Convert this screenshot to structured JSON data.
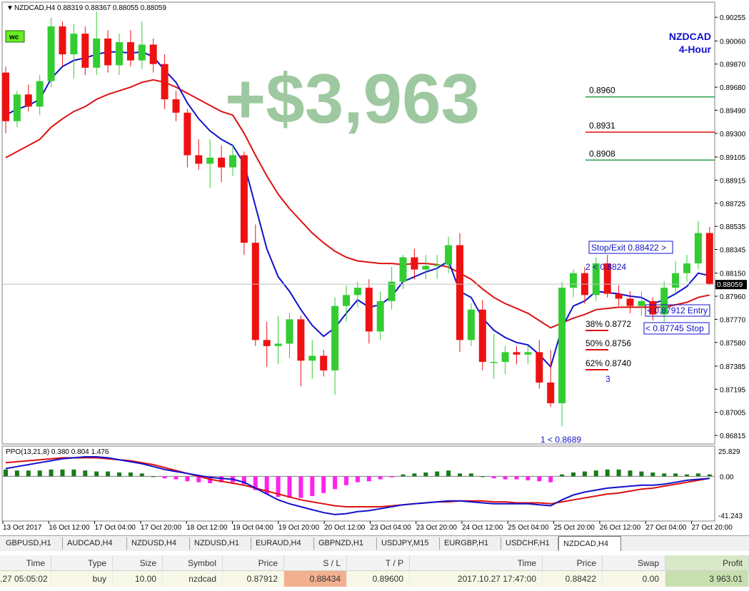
{
  "chart": {
    "header": "NZDCAD,H4  0.88319 0.88367 0.88055 0.88059",
    "logo_badge": "wc",
    "symbol_label": "NZDCAD",
    "timeframe_label": "4-Hour",
    "profit_overlay": "+$3,963",
    "current_price_tag": "0.88059",
    "price_axis": [
      "0.90255",
      "0.90060",
      "0.89870",
      "0.89680",
      "0.89490",
      "0.89300",
      "0.89105",
      "0.88915",
      "0.88725",
      "0.88535",
      "0.88345",
      "0.88150",
      "0.87960",
      "0.87770",
      "0.87580",
      "0.87385",
      "0.87195",
      "0.87005",
      "0.86815"
    ],
    "time_axis": [
      "13 Oct 2017",
      "16 Oct 12:00",
      "17 Oct 04:00",
      "17 Oct 20:00",
      "18 Oct 12:00",
      "19 Oct 04:00",
      "19 Oct 20:00",
      "20 Oct 12:00",
      "23 Oct 04:00",
      "23 Oct 20:00",
      "24 Oct 12:00",
      "25 Oct 04:00",
      "25 Oct 20:00",
      "26 Oct 12:00",
      "27 Oct 04:00",
      "27 Oct 20:00"
    ],
    "levels": [
      {
        "label": "0.8960",
        "price": 0.896,
        "color": "#2e9e4a"
      },
      {
        "label": "0.8931",
        "price": 0.8931,
        "color": "#dd1111"
      },
      {
        "label": "0.8908",
        "price": 0.8908,
        "color": "#2e9e4a"
      }
    ],
    "annotations": {
      "stop_exit": "Stop/Exit 0.88422 >",
      "wave2": "2 < 0.8824",
      "entry": "< 0.87912 Entry",
      "stop": "< 0.87745 Stop",
      "fib38": "38% 0.8772",
      "fib50": "50% 0.8756",
      "fib62": "62% 0.8740",
      "wave3": "3",
      "wave1": "1 < 0.8689"
    },
    "indicator": {
      "label": "PPO(13,21,8) 0.380 0.804 1.476",
      "axis_top": "25.829",
      "axis_zero": "0.00",
      "axis_bottom": "-41.243"
    }
  },
  "tabs": [
    {
      "label": "GBPUSD,H1",
      "active": false
    },
    {
      "label": "AUDCAD,H4",
      "active": false
    },
    {
      "label": "NZDUSD,H4",
      "active": false
    },
    {
      "label": "NZDUSD,H1",
      "active": false
    },
    {
      "label": "EURAUD,H4",
      "active": false
    },
    {
      "label": "GBPNZD,H1",
      "active": false
    },
    {
      "label": "USDJPY,M15",
      "active": false
    },
    {
      "label": "EURGBP,H1",
      "active": false
    },
    {
      "label": "USDCHF,H1",
      "active": false
    },
    {
      "label": "NZDCAD,H4",
      "active": true
    }
  ],
  "terminal": {
    "headers": {
      "time": "Time",
      "type": "Type",
      "size": "Size",
      "symbol": "Symbol",
      "price": "Price",
      "sl": "S / L",
      "tp": "T / P",
      "close_time": "Time",
      "close_price": "Price",
      "swap": "Swap",
      "profit": "Profit"
    },
    "row": {
      "time": ".27 05:05:02",
      "type": "buy",
      "size": "10.00",
      "symbol": "nzdcad",
      "price": "0.87912",
      "sl": "0.88434",
      "tp": "0.89600",
      "close_time": "2017.10.27 17:47:00",
      "close_price": "0.88422",
      "swap": "0.00",
      "profit": "3 963.01"
    }
  },
  "chart_data": {
    "type": "candlestick",
    "title": "NZDCAD,H4",
    "ylim": [
      0.8678,
      0.9035
    ],
    "colors": {
      "bull": "#33cc33",
      "bear": "#ee1111",
      "fast_ma": "#1111cc",
      "slow_ma": "#dd1111",
      "ppo_pos": "#1a7a1a",
      "ppo_neg": "#ff22ee"
    },
    "candles": [
      {
        "o": 0.898,
        "h": 0.8985,
        "l": 0.893,
        "c": 0.894
      },
      {
        "o": 0.894,
        "h": 0.8965,
        "l": 0.8935,
        "c": 0.8962
      },
      {
        "o": 0.8962,
        "h": 0.897,
        "l": 0.8948,
        "c": 0.8952
      },
      {
        "o": 0.8952,
        "h": 0.8978,
        "l": 0.8945,
        "c": 0.8973
      },
      {
        "o": 0.8973,
        "h": 0.9025,
        "l": 0.8968,
        "c": 0.9018
      },
      {
        "o": 0.9018,
        "h": 0.9022,
        "l": 0.8985,
        "c": 0.8995
      },
      {
        "o": 0.8995,
        "h": 0.902,
        "l": 0.8975,
        "c": 0.9012
      },
      {
        "o": 0.9012,
        "h": 0.9018,
        "l": 0.8978,
        "c": 0.8984
      },
      {
        "o": 0.8984,
        "h": 0.903,
        "l": 0.8978,
        "c": 0.9008
      },
      {
        "o": 0.9008,
        "h": 0.9015,
        "l": 0.898,
        "c": 0.8986
      },
      {
        "o": 0.8986,
        "h": 0.9012,
        "l": 0.8978,
        "c": 0.9005
      },
      {
        "o": 0.9005,
        "h": 0.9015,
        "l": 0.8985,
        "c": 0.899
      },
      {
        "o": 0.899,
        "h": 0.9022,
        "l": 0.8983,
        "c": 0.9003
      },
      {
        "o": 0.9003,
        "h": 0.9008,
        "l": 0.898,
        "c": 0.8987
      },
      {
        "o": 0.8987,
        "h": 0.8995,
        "l": 0.895,
        "c": 0.8958
      },
      {
        "o": 0.8958,
        "h": 0.8965,
        "l": 0.894,
        "c": 0.8947
      },
      {
        "o": 0.8947,
        "h": 0.895,
        "l": 0.8902,
        "c": 0.8912
      },
      {
        "o": 0.8912,
        "h": 0.8925,
        "l": 0.89,
        "c": 0.8905
      },
      {
        "o": 0.8905,
        "h": 0.8925,
        "l": 0.8885,
        "c": 0.891
      },
      {
        "o": 0.891,
        "h": 0.892,
        "l": 0.889,
        "c": 0.8902
      },
      {
        "o": 0.8902,
        "h": 0.892,
        "l": 0.8895,
        "c": 0.8912
      },
      {
        "o": 0.8912,
        "h": 0.8915,
        "l": 0.883,
        "c": 0.884
      },
      {
        "o": 0.884,
        "h": 0.8855,
        "l": 0.8755,
        "c": 0.876
      },
      {
        "o": 0.876,
        "h": 0.8775,
        "l": 0.8738,
        "c": 0.8755
      },
      {
        "o": 0.8755,
        "h": 0.878,
        "l": 0.874,
        "c": 0.8757
      },
      {
        "o": 0.8757,
        "h": 0.8782,
        "l": 0.8745,
        "c": 0.8777
      },
      {
        "o": 0.8777,
        "h": 0.878,
        "l": 0.8722,
        "c": 0.8743
      },
      {
        "o": 0.8743,
        "h": 0.876,
        "l": 0.8728,
        "c": 0.8747
      },
      {
        "o": 0.8747,
        "h": 0.8752,
        "l": 0.873,
        "c": 0.8735
      },
      {
        "o": 0.8735,
        "h": 0.8795,
        "l": 0.8715,
        "c": 0.8788
      },
      {
        "o": 0.8788,
        "h": 0.8805,
        "l": 0.8775,
        "c": 0.8797
      },
      {
        "o": 0.8797,
        "h": 0.8808,
        "l": 0.8787,
        "c": 0.8803
      },
      {
        "o": 0.8803,
        "h": 0.881,
        "l": 0.8757,
        "c": 0.8767
      },
      {
        "o": 0.8767,
        "h": 0.88,
        "l": 0.876,
        "c": 0.8792
      },
      {
        "o": 0.8792,
        "h": 0.882,
        "l": 0.8785,
        "c": 0.8808
      },
      {
        "o": 0.8808,
        "h": 0.883,
        "l": 0.8802,
        "c": 0.8828
      },
      {
        "o": 0.8828,
        "h": 0.8835,
        "l": 0.881,
        "c": 0.8818
      },
      {
        "o": 0.8818,
        "h": 0.883,
        "l": 0.881,
        "c": 0.8821
      },
      {
        "o": 0.8821,
        "h": 0.883,
        "l": 0.881,
        "c": 0.8822
      },
      {
        "o": 0.8822,
        "h": 0.8845,
        "l": 0.8815,
        "c": 0.8838
      },
      {
        "o": 0.8838,
        "h": 0.8848,
        "l": 0.875,
        "c": 0.876
      },
      {
        "o": 0.876,
        "h": 0.879,
        "l": 0.8755,
        "c": 0.8785
      },
      {
        "o": 0.8785,
        "h": 0.8793,
        "l": 0.8735,
        "c": 0.8742
      },
      {
        "o": 0.8742,
        "h": 0.8765,
        "l": 0.8728,
        "c": 0.8742
      },
      {
        "o": 0.8742,
        "h": 0.8755,
        "l": 0.8732,
        "c": 0.875
      },
      {
        "o": 0.875,
        "h": 0.8755,
        "l": 0.874,
        "c": 0.8748
      },
      {
        "o": 0.8748,
        "h": 0.8755,
        "l": 0.874,
        "c": 0.875
      },
      {
        "o": 0.875,
        "h": 0.876,
        "l": 0.872,
        "c": 0.8725
      },
      {
        "o": 0.8725,
        "h": 0.8752,
        "l": 0.8705,
        "c": 0.8708
      },
      {
        "o": 0.8708,
        "h": 0.8808,
        "l": 0.8689,
        "c": 0.8803
      },
      {
        "o": 0.8803,
        "h": 0.8818,
        "l": 0.8795,
        "c": 0.8815
      },
      {
        "o": 0.8815,
        "h": 0.882,
        "l": 0.879,
        "c": 0.8797
      },
      {
        "o": 0.8797,
        "h": 0.8828,
        "l": 0.8792,
        "c": 0.8823
      },
      {
        "o": 0.8823,
        "h": 0.883,
        "l": 0.8795,
        "c": 0.8798
      },
      {
        "o": 0.8798,
        "h": 0.8805,
        "l": 0.8788,
        "c": 0.8794
      },
      {
        "o": 0.8794,
        "h": 0.88,
        "l": 0.8782,
        "c": 0.8788
      },
      {
        "o": 0.8788,
        "h": 0.88,
        "l": 0.878,
        "c": 0.8792
      },
      {
        "o": 0.8792,
        "h": 0.8795,
        "l": 0.8776,
        "c": 0.8781
      },
      {
        "o": 0.8781,
        "h": 0.8808,
        "l": 0.8775,
        "c": 0.8803
      },
      {
        "o": 0.8803,
        "h": 0.8825,
        "l": 0.8798,
        "c": 0.8815
      },
      {
        "o": 0.8815,
        "h": 0.883,
        "l": 0.8808,
        "c": 0.8823
      },
      {
        "o": 0.8823,
        "h": 0.8858,
        "l": 0.8818,
        "c": 0.8848
      },
      {
        "o": 0.8848,
        "h": 0.8853,
        "l": 0.8805,
        "c": 0.8806
      }
    ],
    "fast_ma": [
      0.8945,
      0.895,
      0.8953,
      0.8958,
      0.8975,
      0.8985,
      0.899,
      0.8992,
      0.8995,
      0.8997,
      0.8997,
      0.8996,
      0.8997,
      0.8993,
      0.8982,
      0.8972,
      0.8955,
      0.8942,
      0.8932,
      0.8925,
      0.892,
      0.8905,
      0.887,
      0.8835,
      0.8812,
      0.88,
      0.8785,
      0.8772,
      0.8763,
      0.877,
      0.8782,
      0.8793,
      0.8787,
      0.8789,
      0.8796,
      0.8808,
      0.8812,
      0.8816,
      0.8819,
      0.8825,
      0.88,
      0.8795,
      0.8778,
      0.8768,
      0.8762,
      0.8758,
      0.8756,
      0.8748,
      0.8738,
      0.877,
      0.8788,
      0.8792,
      0.88,
      0.8799,
      0.8798,
      0.8796,
      0.8795,
      0.879,
      0.8793,
      0.8798,
      0.8804,
      0.8815,
      0.8813
    ],
    "slow_ma": [
      0.891,
      0.8915,
      0.892,
      0.8925,
      0.8935,
      0.8942,
      0.8948,
      0.8952,
      0.8958,
      0.8962,
      0.8965,
      0.8968,
      0.8972,
      0.8974,
      0.8972,
      0.8968,
      0.8963,
      0.8958,
      0.8953,
      0.8948,
      0.8945,
      0.893,
      0.8912,
      0.8895,
      0.888,
      0.8868,
      0.8858,
      0.8848,
      0.884,
      0.8833,
      0.8828,
      0.8825,
      0.8824,
      0.8823,
      0.8823,
      0.8822,
      0.8823,
      0.8823,
      0.8822,
      0.882,
      0.8815,
      0.881,
      0.8802,
      0.8795,
      0.879,
      0.8786,
      0.8782,
      0.8776,
      0.877,
      0.8774,
      0.8778,
      0.8781,
      0.8785,
      0.8786,
      0.8787,
      0.8787,
      0.8787,
      0.8787,
      0.8787,
      0.8789,
      0.8791,
      0.8795,
      0.8797
    ],
    "ppo_hist": [
      7,
      6,
      6,
      6,
      7,
      7,
      7,
      6,
      5,
      5,
      4,
      4,
      3,
      0,
      -2,
      -3,
      -5,
      -6,
      -7,
      -6,
      -6,
      -8,
      -14,
      -18,
      -21,
      -22,
      -22,
      -20,
      -17,
      -13,
      -9,
      -6,
      -5,
      -3,
      -1,
      2,
      3,
      4,
      5,
      6,
      3,
      3,
      0,
      -2,
      -3,
      -3,
      -4,
      -5,
      -6,
      2,
      4,
      5,
      6,
      7,
      7,
      6,
      5,
      4,
      3,
      3,
      2,
      3,
      2
    ],
    "ppo_line": [
      8,
      10,
      12,
      14,
      16,
      18,
      19,
      20,
      20,
      19,
      17,
      15,
      13,
      10,
      7,
      5,
      3,
      1,
      -1,
      -2,
      -3,
      -6,
      -12,
      -18,
      -24,
      -28,
      -31,
      -34,
      -37,
      -39,
      -38,
      -36,
      -35,
      -33,
      -31,
      -29,
      -28,
      -27,
      -26,
      -25,
      -25,
      -26,
      -27,
      -28,
      -28,
      -28,
      -28,
      -29,
      -30,
      -24,
      -19,
      -16,
      -14,
      -12,
      -11,
      -10,
      -9,
      -9,
      -8,
      -6,
      -4,
      -3,
      -2
    ],
    "ppo_signal": [
      14,
      15,
      16,
      17,
      18,
      19,
      19,
      19,
      19,
      18,
      17,
      16,
      14,
      12,
      9,
      6,
      3,
      0,
      -3,
      -5,
      -7,
      -9,
      -12,
      -15,
      -18,
      -21,
      -24,
      -26,
      -28,
      -30,
      -31,
      -31,
      -31,
      -31,
      -30,
      -29,
      -28,
      -27,
      -26,
      -26,
      -25,
      -25,
      -25,
      -26,
      -26,
      -27,
      -27,
      -27,
      -28,
      -26,
      -24,
      -22,
      -20,
      -18,
      -17,
      -15,
      -13,
      -12,
      -10,
      -8,
      -6,
      -4,
      -2
    ],
    "ppo_ylim": [
      -41.243,
      25.829
    ]
  }
}
